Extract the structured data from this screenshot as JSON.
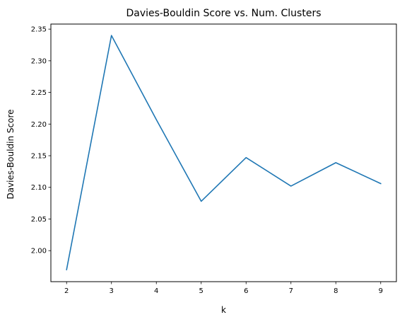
{
  "chart_data": {
    "type": "line",
    "title": "Davies-Bouldin Score vs. Num. Clusters",
    "xlabel": "k",
    "ylabel": "Davies-Bouldin Score",
    "x": [
      2,
      3,
      4,
      5,
      6,
      7,
      8,
      9
    ],
    "series": [
      {
        "values": [
          1.97,
          2.34,
          2.207,
          2.078,
          2.147,
          2.102,
          2.139,
          2.106
        ],
        "color": "#1f77b4"
      }
    ],
    "xticks": [
      "2",
      "3",
      "4",
      "5",
      "6",
      "7",
      "8",
      "9"
    ],
    "yticks": [
      "2.00",
      "2.05",
      "2.10",
      "2.15",
      "2.20",
      "2.25",
      "2.30",
      "2.35"
    ],
    "xlim": [
      1.65,
      9.35
    ],
    "ylim": [
      1.951,
      2.358
    ],
    "grid": false,
    "legend": "none"
  }
}
